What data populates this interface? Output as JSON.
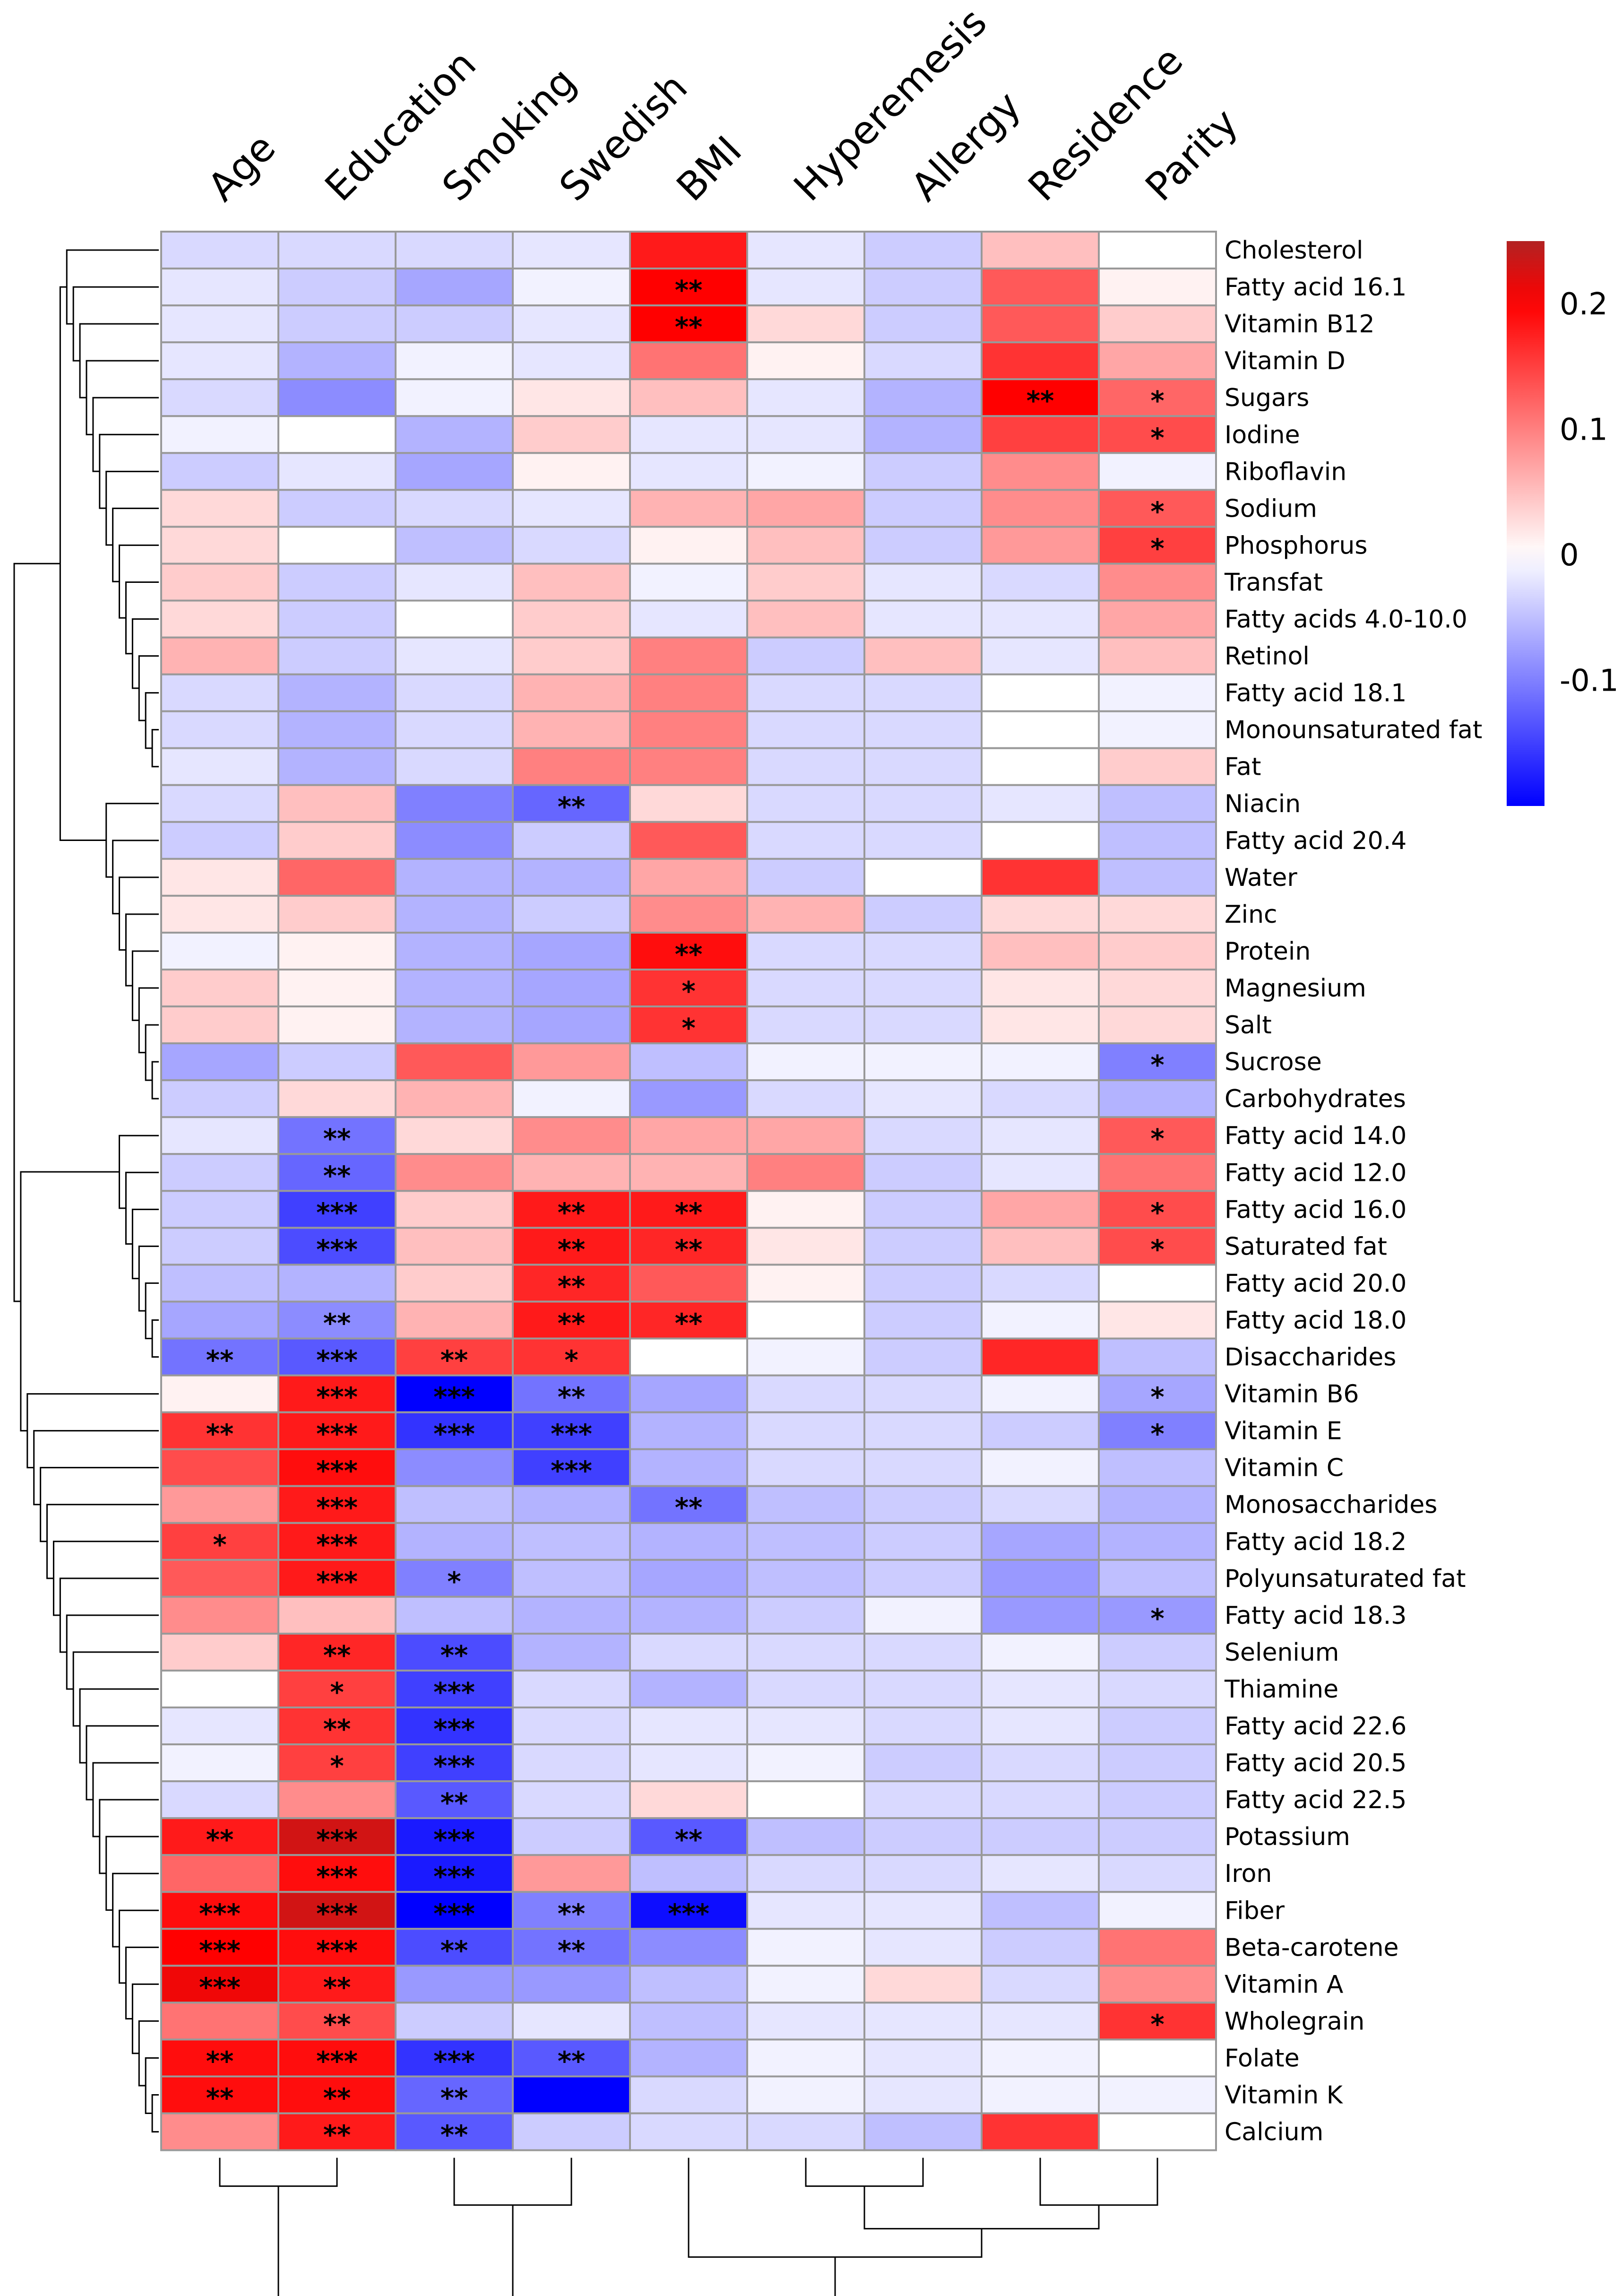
{
  "chart_data": {
    "type": "heatmap",
    "title": "",
    "columns": [
      "Age",
      "Education",
      "Smoking",
      "Swedish",
      "BMI",
      "Hyperemesis",
      "Allergy",
      "Residence",
      "Parity"
    ],
    "rows": [
      "Cholesterol",
      "Fatty acid 16.1",
      "Vitamin B12",
      "Vitamin D",
      "Sugars",
      "Iodine",
      "Riboflavin",
      "Sodium",
      "Phosphorus",
      "Transfat",
      "Fatty acids 4.0-10.0",
      "Retinol",
      "Fatty acid 18.1",
      "Monounsaturated fat",
      "Fat",
      "Niacin",
      "Fatty acid 20.4",
      "Water",
      "Zinc",
      "Protein",
      "Magnesium",
      "Salt",
      "Sucrose",
      "Carbohydrates",
      "Fatty acid 14.0",
      "Fatty acid 12.0",
      "Fatty acid 16.0",
      "Saturated fat",
      "Fatty acid 20.0",
      "Fatty acid 18.0",
      "Disaccharides",
      "Vitamin B6",
      "Vitamin E",
      "Vitamin C",
      "Monosaccharides",
      "Fatty acid 18.2",
      "Polyunsaturated fat",
      "Fatty acid 18.3",
      "Selenium",
      "Thiamine",
      "Fatty acid 22.6",
      "Fatty acid 20.5",
      "Fatty acid 22.5",
      "Potassium",
      "Iron",
      "Fiber",
      "Beta-carotene",
      "Vitamin A",
      "Wholegrain",
      "Folate",
      "Vitamin K",
      "Calcium"
    ],
    "values": [
      [
        -0.03,
        -0.03,
        -0.03,
        -0.02,
        0.18,
        -0.02,
        -0.04,
        0.05,
        0.0
      ],
      [
        -0.02,
        -0.04,
        -0.07,
        -0.01,
        0.2,
        -0.02,
        -0.04,
        0.13,
        0.01
      ],
      [
        -0.02,
        -0.04,
        -0.04,
        -0.02,
        0.2,
        0.03,
        -0.04,
        0.13,
        0.04
      ],
      [
        -0.02,
        -0.06,
        -0.01,
        -0.02,
        0.11,
        0.01,
        -0.03,
        0.16,
        0.07
      ],
      [
        -0.03,
        -0.09,
        -0.01,
        0.02,
        0.05,
        -0.02,
        -0.06,
        0.2,
        0.12
      ],
      [
        -0.01,
        0.0,
        -0.06,
        0.04,
        -0.02,
        -0.02,
        -0.06,
        0.15,
        0.14
      ],
      [
        -0.04,
        -0.02,
        -0.07,
        0.01,
        -0.02,
        -0.01,
        -0.04,
        0.09,
        -0.01
      ],
      [
        0.03,
        -0.04,
        -0.03,
        -0.02,
        0.06,
        0.07,
        -0.04,
        0.09,
        0.13
      ],
      [
        0.03,
        0.0,
        -0.05,
        -0.03,
        0.01,
        0.05,
        -0.04,
        0.08,
        0.15
      ],
      [
        0.04,
        -0.04,
        -0.02,
        0.05,
        -0.01,
        0.04,
        -0.02,
        -0.03,
        0.09
      ],
      [
        0.03,
        -0.04,
        0.0,
        0.04,
        -0.02,
        0.05,
        -0.02,
        -0.02,
        0.07
      ],
      [
        0.06,
        -0.04,
        -0.02,
        0.04,
        0.1,
        -0.04,
        0.05,
        -0.02,
        0.05
      ],
      [
        -0.03,
        -0.06,
        -0.03,
        0.06,
        0.1,
        -0.03,
        -0.03,
        0.0,
        -0.01
      ],
      [
        -0.03,
        -0.06,
        -0.03,
        0.06,
        0.1,
        -0.03,
        -0.03,
        0.0,
        -0.01
      ],
      [
        -0.02,
        -0.06,
        -0.03,
        0.1,
        0.1,
        -0.03,
        -0.03,
        0.0,
        0.04
      ],
      [
        -0.03,
        0.05,
        -0.1,
        -0.12,
        0.03,
        -0.03,
        -0.03,
        -0.02,
        -0.05
      ],
      [
        -0.04,
        0.04,
        -0.09,
        -0.04,
        0.13,
        -0.03,
        -0.03,
        0.0,
        -0.05
      ],
      [
        0.02,
        0.12,
        -0.06,
        -0.06,
        0.07,
        -0.04,
        0.0,
        0.16,
        -0.05
      ],
      [
        0.02,
        0.04,
        -0.06,
        -0.04,
        0.09,
        0.06,
        -0.04,
        0.03,
        0.03
      ],
      [
        -0.01,
        0.01,
        -0.06,
        -0.07,
        0.19,
        -0.03,
        -0.03,
        0.05,
        0.04
      ],
      [
        0.04,
        0.01,
        -0.06,
        -0.07,
        0.16,
        -0.03,
        -0.03,
        0.02,
        0.03
      ],
      [
        0.04,
        0.01,
        -0.06,
        -0.07,
        0.16,
        -0.03,
        -0.03,
        0.02,
        0.03
      ],
      [
        -0.07,
        -0.04,
        0.13,
        0.08,
        -0.05,
        -0.01,
        -0.01,
        -0.01,
        -0.1
      ],
      [
        -0.04,
        0.03,
        0.06,
        -0.01,
        -0.08,
        -0.03,
        -0.02,
        -0.03,
        -0.06
      ],
      [
        -0.02,
        -0.11,
        0.03,
        0.09,
        0.07,
        0.07,
        -0.03,
        -0.02,
        0.13
      ],
      [
        -0.04,
        -0.12,
        0.09,
        0.06,
        0.06,
        0.1,
        -0.04,
        -0.02,
        0.11
      ],
      [
        -0.04,
        -0.15,
        0.04,
        0.18,
        0.18,
        0.01,
        -0.04,
        0.07,
        0.14
      ],
      [
        -0.04,
        -0.14,
        0.05,
        0.18,
        0.17,
        0.02,
        -0.04,
        0.05,
        0.14
      ],
      [
        -0.05,
        -0.06,
        0.04,
        0.17,
        0.13,
        0.01,
        -0.04,
        -0.03,
        0.0
      ],
      [
        -0.07,
        -0.09,
        0.06,
        0.18,
        0.17,
        0.0,
        -0.04,
        -0.01,
        0.02
      ],
      [
        -0.11,
        -0.13,
        0.15,
        0.16,
        0.0,
        -0.01,
        -0.04,
        0.17,
        -0.05
      ],
      [
        0.01,
        0.18,
        -0.2,
        -0.11,
        -0.07,
        -0.03,
        -0.03,
        -0.01,
        -0.07
      ],
      [
        0.16,
        0.18,
        -0.16,
        -0.15,
        -0.06,
        -0.03,
        -0.03,
        -0.04,
        -0.1
      ],
      [
        0.14,
        0.19,
        -0.09,
        -0.15,
        -0.06,
        -0.03,
        -0.03,
        -0.01,
        -0.05
      ],
      [
        0.08,
        0.18,
        -0.05,
        -0.06,
        -0.11,
        -0.05,
        -0.04,
        -0.03,
        -0.06
      ],
      [
        0.15,
        0.18,
        -0.06,
        -0.05,
        -0.06,
        -0.05,
        -0.04,
        -0.07,
        -0.06
      ],
      [
        0.13,
        0.18,
        -0.1,
        -0.05,
        -0.07,
        -0.05,
        -0.04,
        -0.08,
        -0.05
      ],
      [
        0.09,
        0.05,
        -0.05,
        -0.06,
        -0.06,
        -0.04,
        -0.01,
        -0.08,
        -0.08
      ],
      [
        0.04,
        0.17,
        -0.14,
        -0.06,
        -0.03,
        -0.03,
        -0.03,
        -0.01,
        -0.04
      ],
      [
        0.0,
        0.15,
        -0.15,
        -0.03,
        -0.06,
        -0.03,
        -0.03,
        -0.02,
        -0.03
      ],
      [
        -0.02,
        0.16,
        -0.16,
        -0.03,
        -0.02,
        -0.02,
        -0.03,
        -0.02,
        -0.04
      ],
      [
        -0.01,
        0.15,
        -0.15,
        -0.03,
        -0.02,
        -0.01,
        -0.04,
        -0.03,
        -0.04
      ],
      [
        -0.03,
        0.09,
        -0.13,
        -0.03,
        0.03,
        0.0,
        -0.03,
        -0.03,
        -0.04
      ],
      [
        0.18,
        0.23,
        -0.18,
        -0.04,
        -0.13,
        -0.05,
        -0.04,
        -0.04,
        -0.04
      ],
      [
        0.12,
        0.19,
        -0.18,
        0.08,
        -0.05,
        -0.03,
        -0.03,
        -0.02,
        -0.03
      ],
      [
        0.19,
        0.23,
        -0.2,
        -0.1,
        -0.19,
        -0.02,
        -0.02,
        -0.05,
        -0.01
      ],
      [
        0.2,
        0.19,
        -0.14,
        -0.11,
        -0.09,
        -0.01,
        -0.02,
        -0.04,
        0.11
      ],
      [
        0.21,
        0.18,
        -0.08,
        -0.08,
        -0.05,
        -0.01,
        0.03,
        -0.03,
        0.09
      ],
      [
        0.11,
        0.14,
        -0.04,
        -0.02,
        -0.05,
        -0.02,
        -0.02,
        -0.02,
        0.16
      ],
      [
        0.19,
        0.19,
        -0.16,
        -0.13,
        -0.06,
        -0.01,
        -0.02,
        -0.01,
        0.0
      ],
      [
        0.19,
        0.19,
        -0.12,
        -0.2,
        -0.03,
        -0.01,
        -0.02,
        -0.01,
        -0.01
      ],
      [
        0.09,
        0.18,
        -0.13,
        -0.04,
        -0.03,
        -0.03,
        -0.05,
        0.16,
        0.0
      ]
    ],
    "significance": [
      [
        "",
        "",
        "",
        "",
        "",
        "",
        "",
        "",
        ""
      ],
      [
        "",
        "",
        "",
        "",
        "**",
        "",
        "",
        "",
        ""
      ],
      [
        "",
        "",
        "",
        "",
        "**",
        "",
        "",
        "",
        ""
      ],
      [
        "",
        "",
        "",
        "",
        "",
        "",
        "",
        "",
        ""
      ],
      [
        "",
        "",
        "",
        "",
        "",
        "",
        "",
        "**",
        "*"
      ],
      [
        "",
        "",
        "",
        "",
        "",
        "",
        "",
        "",
        "*"
      ],
      [
        "",
        "",
        "",
        "",
        "",
        "",
        "",
        "",
        ""
      ],
      [
        "",
        "",
        "",
        "",
        "",
        "",
        "",
        "",
        "*"
      ],
      [
        "",
        "",
        "",
        "",
        "",
        "",
        "",
        "",
        "*"
      ],
      [
        "",
        "",
        "",
        "",
        "",
        "",
        "",
        "",
        ""
      ],
      [
        "",
        "",
        "",
        "",
        "",
        "",
        "",
        "",
        ""
      ],
      [
        "",
        "",
        "",
        "",
        "",
        "",
        "",
        "",
        ""
      ],
      [
        "",
        "",
        "",
        "",
        "",
        "",
        "",
        "",
        ""
      ],
      [
        "",
        "",
        "",
        "",
        "",
        "",
        "",
        "",
        ""
      ],
      [
        "",
        "",
        "",
        "",
        "",
        "",
        "",
        "",
        ""
      ],
      [
        "",
        "",
        "",
        "**",
        "",
        "",
        "",
        "",
        ""
      ],
      [
        "",
        "",
        "",
        "",
        "",
        "",
        "",
        "",
        ""
      ],
      [
        "",
        "",
        "",
        "",
        "",
        "",
        "",
        "",
        ""
      ],
      [
        "",
        "",
        "",
        "",
        "",
        "",
        "",
        "",
        ""
      ],
      [
        "",
        "",
        "",
        "",
        "**",
        "",
        "",
        "",
        ""
      ],
      [
        "",
        "",
        "",
        "",
        "*",
        "",
        "",
        "",
        ""
      ],
      [
        "",
        "",
        "",
        "",
        "*",
        "",
        "",
        "",
        ""
      ],
      [
        "",
        "",
        "",
        "",
        "",
        "",
        "",
        "",
        "*"
      ],
      [
        "",
        "",
        "",
        "",
        "",
        "",
        "",
        "",
        ""
      ],
      [
        "",
        "**",
        "",
        "",
        "",
        "",
        "",
        "",
        "*"
      ],
      [
        "",
        "**",
        "",
        "",
        "",
        "",
        "",
        "",
        ""
      ],
      [
        "",
        "***",
        "",
        "**",
        "**",
        "",
        "",
        "",
        "*"
      ],
      [
        "",
        "***",
        "",
        "**",
        "**",
        "",
        "",
        "",
        "*"
      ],
      [
        "",
        "",
        "",
        "**",
        "",
        "",
        "",
        "",
        ""
      ],
      [
        "",
        "**",
        "",
        "**",
        "**",
        "",
        "",
        "",
        ""
      ],
      [
        "**",
        "***",
        "**",
        "*",
        "",
        "",
        "",
        "",
        ""
      ],
      [
        "",
        "***",
        "***",
        "**",
        "",
        "",
        "",
        "",
        "*"
      ],
      [
        "**",
        "***",
        "***",
        "***",
        "",
        "",
        "",
        "",
        "*"
      ],
      [
        "",
        "***",
        "",
        "***",
        "",
        "",
        "",
        "",
        ""
      ],
      [
        "",
        "***",
        "",
        "",
        "**",
        "",
        "",
        "",
        ""
      ],
      [
        "*",
        "***",
        "",
        "",
        "",
        "",
        "",
        "",
        ""
      ],
      [
        "",
        "***",
        "*",
        "",
        "",
        "",
        "",
        "",
        ""
      ],
      [
        "",
        "",
        "",
        "",
        "",
        "",
        "",
        "",
        "*"
      ],
      [
        "",
        "**",
        "**",
        "",
        "",
        "",
        "",
        "",
        ""
      ],
      [
        "",
        "*",
        "***",
        "",
        "",
        "",
        "",
        "",
        ""
      ],
      [
        "",
        "**",
        "***",
        "",
        "",
        "",
        "",
        "",
        ""
      ],
      [
        "",
        "*",
        "***",
        "",
        "",
        "",
        "",
        "",
        ""
      ],
      [
        "",
        "",
        "**",
        "",
        "",
        "",
        "",
        "",
        ""
      ],
      [
        "**",
        "***",
        "***",
        "",
        "**",
        "",
        "",
        "",
        ""
      ],
      [
        "",
        "***",
        "***",
        "",
        "",
        "",
        "",
        "",
        ""
      ],
      [
        "***",
        "***",
        "***",
        "**",
        "***",
        "",
        "",
        "",
        ""
      ],
      [
        "***",
        "***",
        "**",
        "**",
        "",
        "",
        "",
        "",
        ""
      ],
      [
        "***",
        "**",
        "",
        "",
        "",
        "",
        "",
        "",
        ""
      ],
      [
        "",
        "**",
        "",
        "",
        "",
        "",
        "",
        "",
        "*"
      ],
      [
        "**",
        "***",
        "***",
        "**",
        "",
        "",
        "",
        "",
        ""
      ],
      [
        "**",
        "**",
        "**",
        "",
        "",
        "",
        "",
        "",
        ""
      ],
      [
        "",
        "**",
        "**",
        "",
        "",
        "",
        "",
        "",
        ""
      ]
    ],
    "colorbar": {
      "ticks": [
        0.2,
        0.1,
        0,
        -0.1
      ],
      "tick_labels": [
        "0.2",
        "0.1",
        "0",
        "-0.1"
      ],
      "range": [
        -0.2,
        0.25
      ],
      "low_color": "#0000ff",
      "mid_color": "#ffffff",
      "high_color": "#ff0000",
      "top_color": "#b22222"
    },
    "grid_color": "#999999"
  }
}
